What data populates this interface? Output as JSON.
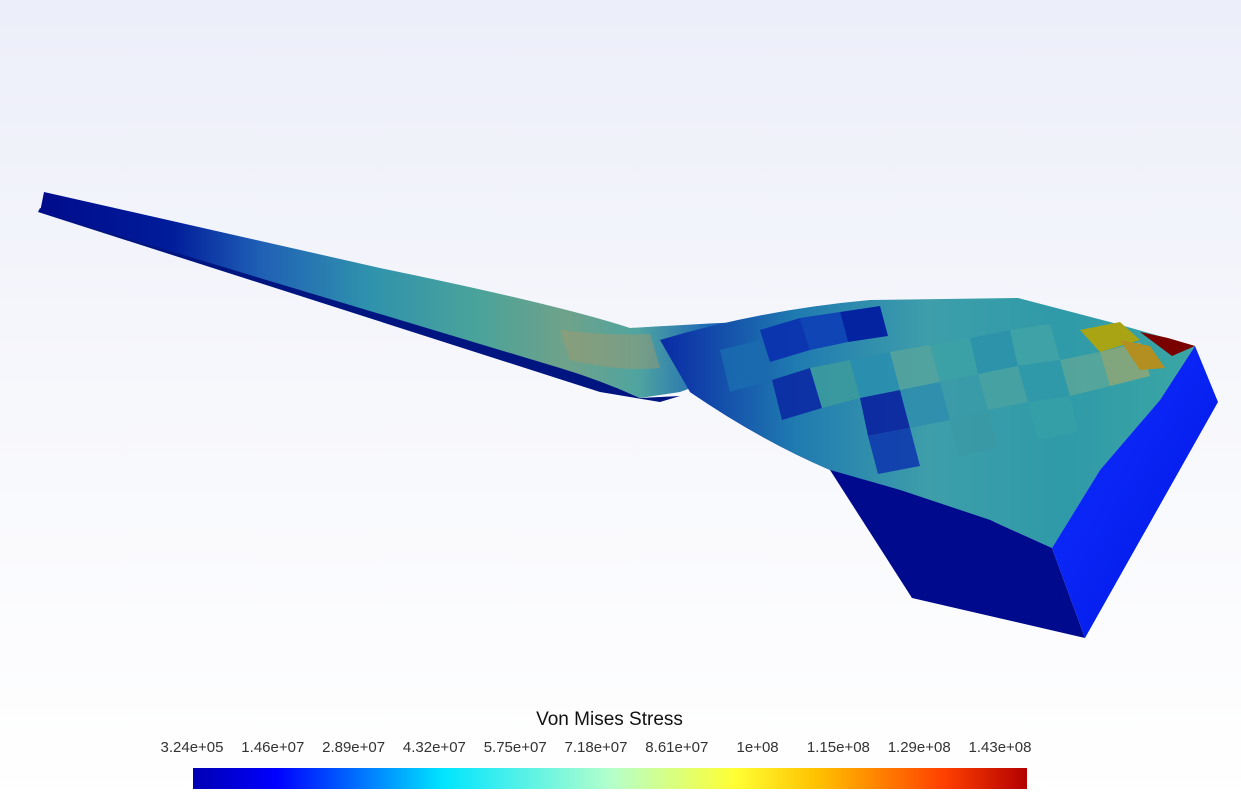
{
  "legend": {
    "title": "Von Mises Stress",
    "ticks": [
      "3.24e+05",
      "1.46e+07",
      "2.89e+07",
      "4.32e+07",
      "5.75e+07",
      "7.18e+07",
      "8.61e+07",
      "1e+08",
      "1.15e+08",
      "1.29e+08",
      "1.43e+08"
    ],
    "colormap": [
      {
        "pos": 0.0,
        "color": "#0000b3"
      },
      {
        "pos": 0.1,
        "color": "#0000ff"
      },
      {
        "pos": 0.3,
        "color": "#00e5ff"
      },
      {
        "pos": 0.5,
        "color": "#b3ffcc"
      },
      {
        "pos": 0.65,
        "color": "#ffff33"
      },
      {
        "pos": 0.75,
        "color": "#ffc000"
      },
      {
        "pos": 0.9,
        "color": "#ff4000"
      },
      {
        "pos": 1.0,
        "color": "#b30000"
      }
    ]
  },
  "model": {
    "colors": {
      "low": "#000a8c",
      "edge": "#0008a0",
      "face": "#0a1bff",
      "mid": "#1a8fa6",
      "high": "#a9a414",
      "max": "#7a0000"
    }
  }
}
